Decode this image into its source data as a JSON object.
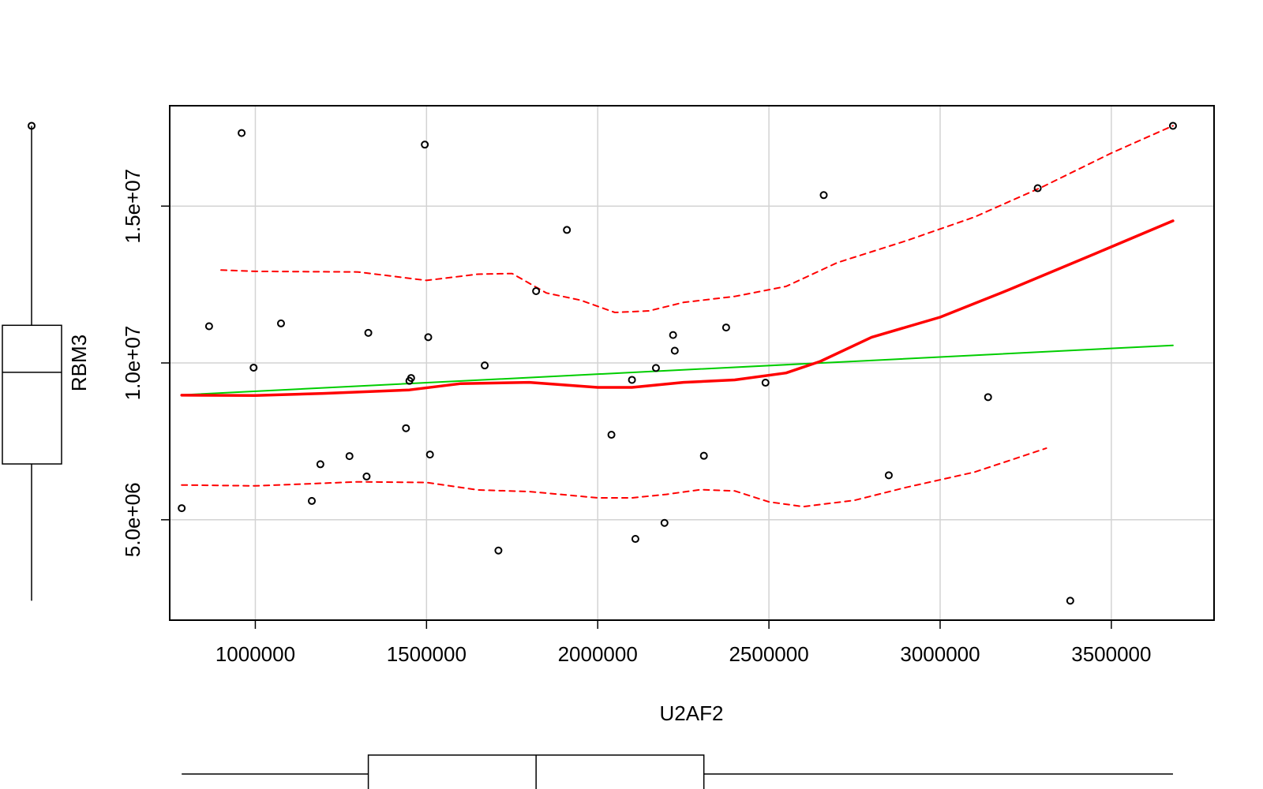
{
  "chart_data": {
    "type": "scatter",
    "title": "",
    "xlabel": "U2AF2",
    "ylabel": "RBM3",
    "xlim": [
      750000,
      3800000
    ],
    "ylim": [
      1800000,
      18200000
    ],
    "x_ticks": [
      1000000,
      1500000,
      2000000,
      2500000,
      3000000,
      3500000
    ],
    "x_tick_labels": [
      "1000000",
      "1500000",
      "2000000",
      "2500000",
      "3000000",
      "3500000"
    ],
    "y_ticks": [
      5000000,
      10000000,
      15000000
    ],
    "y_tick_labels": [
      "5.0e+06",
      "1.0e+07",
      "1.5e+07"
    ],
    "grid": true,
    "points": [
      {
        "x": 785000,
        "y": 5370000
      },
      {
        "x": 865000,
        "y": 11170000
      },
      {
        "x": 960000,
        "y": 17330000
      },
      {
        "x": 995000,
        "y": 9850000
      },
      {
        "x": 1075000,
        "y": 11260000
      },
      {
        "x": 1165000,
        "y": 5600000
      },
      {
        "x": 1190000,
        "y": 6770000
      },
      {
        "x": 1275000,
        "y": 7030000
      },
      {
        "x": 1325000,
        "y": 6380000
      },
      {
        "x": 1330000,
        "y": 10960000
      },
      {
        "x": 1440000,
        "y": 7920000
      },
      {
        "x": 1450000,
        "y": 9430000
      },
      {
        "x": 1455000,
        "y": 9520000
      },
      {
        "x": 1495000,
        "y": 16960000
      },
      {
        "x": 1505000,
        "y": 10820000
      },
      {
        "x": 1510000,
        "y": 7080000
      },
      {
        "x": 1670000,
        "y": 9920000
      },
      {
        "x": 1710000,
        "y": 4020000
      },
      {
        "x": 1820000,
        "y": 12290000
      },
      {
        "x": 1910000,
        "y": 14240000
      },
      {
        "x": 2040000,
        "y": 7710000
      },
      {
        "x": 2100000,
        "y": 9460000
      },
      {
        "x": 2110000,
        "y": 4390000
      },
      {
        "x": 2170000,
        "y": 9840000
      },
      {
        "x": 2195000,
        "y": 4900000
      },
      {
        "x": 2220000,
        "y": 10890000
      },
      {
        "x": 2225000,
        "y": 10390000
      },
      {
        "x": 2310000,
        "y": 7040000
      },
      {
        "x": 2375000,
        "y": 11130000
      },
      {
        "x": 2490000,
        "y": 9370000
      },
      {
        "x": 2660000,
        "y": 15350000
      },
      {
        "x": 2850000,
        "y": 6420000
      },
      {
        "x": 3140000,
        "y": 8910000
      },
      {
        "x": 3285000,
        "y": 15570000
      },
      {
        "x": 3380000,
        "y": 2420000
      },
      {
        "x": 3680000,
        "y": 17560000
      }
    ],
    "series": [
      {
        "kind": "linear-fit",
        "color": "#00cd00",
        "x": [
          785000,
          3680000
        ],
        "y": [
          8980000,
          10560000
        ]
      },
      {
        "kind": "smoother",
        "color": "#ff0000",
        "x": [
          785000,
          1000000,
          1200000,
          1450000,
          1600000,
          1800000,
          2000000,
          2100000,
          2250000,
          2400000,
          2550000,
          2650000,
          2800000,
          3000000,
          3200000,
          3450000,
          3680000
        ],
        "y": [
          8970000,
          8960000,
          9030000,
          9140000,
          9340000,
          9380000,
          9220000,
          9220000,
          9380000,
          9460000,
          9680000,
          10050000,
          10820000,
          11460000,
          12330000,
          13470000,
          14530000
        ]
      },
      {
        "kind": "smoother-upper",
        "color": "#ff0000",
        "x": [
          900000,
          1000000,
          1300000,
          1500000,
          1650000,
          1750000,
          1850000,
          1950000,
          2050000,
          2150000,
          2250000,
          2400000,
          2550000,
          2700000,
          2900000,
          3100000,
          3300000,
          3500000,
          3680000
        ],
        "y": [
          12960000,
          12920000,
          12900000,
          12630000,
          12830000,
          12850000,
          12230000,
          12000000,
          11610000,
          11660000,
          11930000,
          12120000,
          12440000,
          13200000,
          13890000,
          14650000,
          15620000,
          16690000,
          17560000
        ]
      },
      {
        "kind": "smoother-lower",
        "color": "#ff0000",
        "x": [
          785000,
          1000000,
          1300000,
          1500000,
          1650000,
          1800000,
          2000000,
          2100000,
          2200000,
          2300000,
          2400000,
          2500000,
          2600000,
          2750000,
          2900000,
          3100000,
          3310000
        ],
        "y": [
          6110000,
          6080000,
          6210000,
          6190000,
          5950000,
          5900000,
          5700000,
          5700000,
          5810000,
          5960000,
          5920000,
          5570000,
          5420000,
          5620000,
          6030000,
          6520000,
          7280000
        ]
      }
    ],
    "y_boxplot": {
      "min": 2420000,
      "q1": 6780000,
      "median": 9700000,
      "q3": 11200000,
      "max": 17560000,
      "outliers": []
    },
    "x_boxplot": {
      "min": 785000,
      "q1": 1330000,
      "median": 1820000,
      "q3": 2310000,
      "max": 3680000,
      "outliers": []
    }
  }
}
